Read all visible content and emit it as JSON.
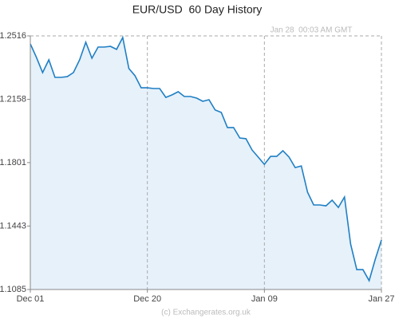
{
  "chart_data": {
    "type": "line",
    "title": "EUR/USD  60 Day History",
    "annotation": "Jan 28  00:03 AM GMT",
    "source": "(c) Exchangerates.org.uk",
    "categories": [
      "Dec 01",
      null,
      null,
      null,
      null,
      null,
      null,
      null,
      null,
      null,
      null,
      null,
      null,
      null,
      null,
      null,
      null,
      null,
      null,
      "Dec 20",
      null,
      null,
      null,
      null,
      null,
      null,
      null,
      null,
      null,
      null,
      null,
      null,
      null,
      null,
      null,
      null,
      null,
      null,
      "Jan 09",
      null,
      null,
      null,
      null,
      null,
      null,
      null,
      null,
      null,
      null,
      null,
      null,
      null,
      null,
      null,
      null,
      null,
      null,
      "Jan 27"
    ],
    "values": [
      1.2471,
      1.2394,
      1.2309,
      1.2381,
      1.2282,
      1.2282,
      1.2286,
      1.2309,
      1.2381,
      1.248,
      1.239,
      1.2453,
      1.2453,
      1.2457,
      1.244,
      1.2507,
      1.2332,
      1.2291,
      1.2223,
      1.2223,
      1.2219,
      1.2219,
      1.2169,
      1.2183,
      1.2201,
      1.2174,
      1.2174,
      1.2165,
      1.2147,
      1.2156,
      1.2098,
      1.2084,
      1.1999,
      1.1999,
      1.194,
      1.1936,
      1.1872,
      1.1832,
      1.1791,
      1.1836,
      1.1836,
      1.1868,
      1.1832,
      1.1773,
      1.1782,
      1.1634,
      1.1562,
      1.1562,
      1.1557,
      1.1589,
      1.1548,
      1.1607,
      1.1341,
      1.1197,
      1.1197,
      1.1135,
      1.1256,
      1.1364
    ],
    "color": "#1f7fc4",
    "fill": "#e6f1fa",
    "ylim": [
      1.1085,
      1.2516
    ],
    "yticks": [
      1.1085,
      1.1443,
      1.1801,
      1.2158,
      1.2516
    ],
    "grid": true
  }
}
